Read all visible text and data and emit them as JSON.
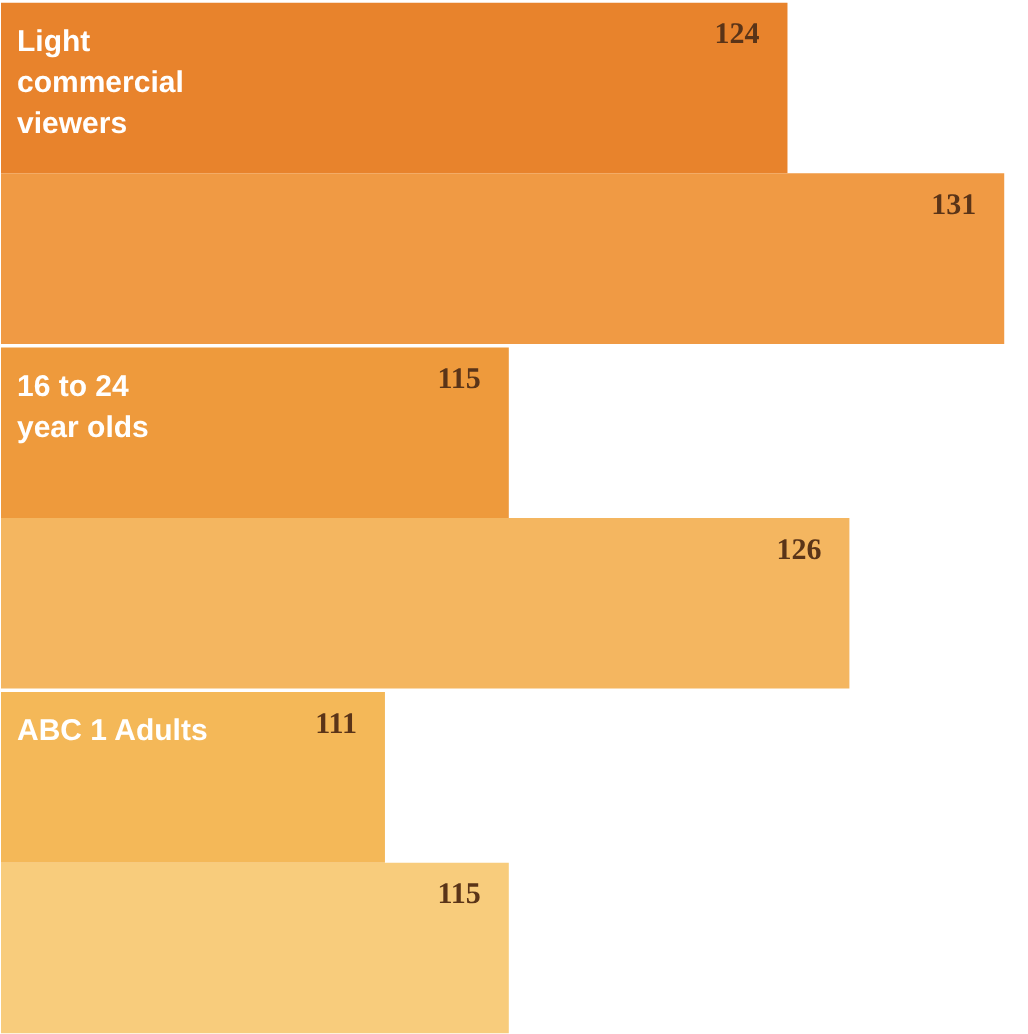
{
  "chart_data": {
    "type": "bar",
    "orientation": "horizontal",
    "categories": [
      "Light commercial viewers",
      "16 to 24 year olds",
      "ABC 1 Adults"
    ],
    "series": [
      {
        "colors": [
          "#e8832c",
          "#ee9a3c",
          "#f4b858"
        ],
        "values": [
          124,
          115,
          111
        ]
      },
      {
        "colors": [
          "#f09a44",
          "#f4b660",
          "#f8cc7c"
        ],
        "values": [
          131,
          126,
          115
        ]
      }
    ],
    "xlim": [
      98.6,
      131.8
    ],
    "data_labels": true,
    "tick_labels": false,
    "grid": false
  }
}
